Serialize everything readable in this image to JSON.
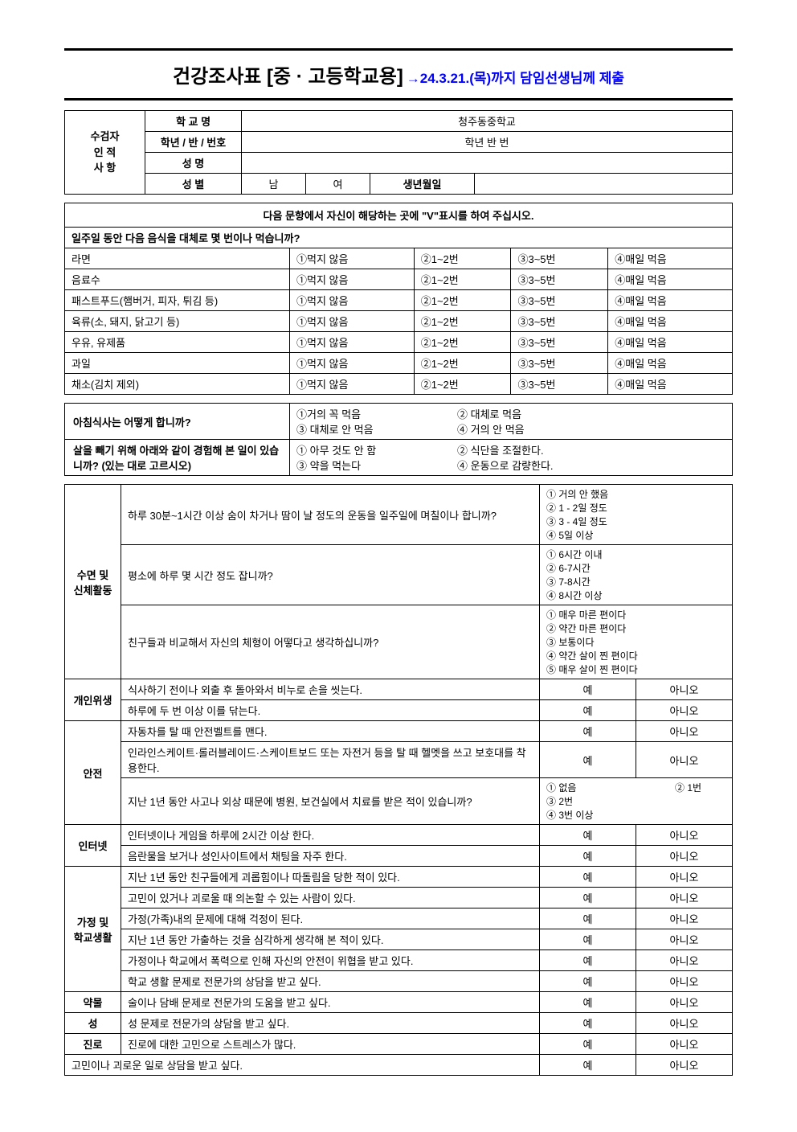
{
  "title": {
    "main": "건강조사표 [중 · 고등학교용]",
    "sub": " →24.3.21.(목)까지 담임선생님께 제출"
  },
  "identity": {
    "rowLabel": "수검자\n인 적\n사 항",
    "schoolLabel": "학 교 명",
    "schoolValue": "청주동중학교",
    "gradeLabel": "학년 / 반 / 번호",
    "gradeValue": "학년      반      번",
    "nameLabel": "성   명",
    "genderLabel": "성   별",
    "genderMale": "남",
    "genderFemale": "여",
    "birthLabel": "생년월일"
  },
  "instruction": "다음  문항에서  자신이  해당하는  곳에  \"V\"표시를  하여  주십시오.",
  "foodSection": {
    "header": "일주일 동안 다음 음식을 대체로 몇 번이나 먹습니까?",
    "options": [
      "①먹지 않음",
      "②1~2번",
      "③3~5번",
      "④매일 먹음"
    ],
    "items": [
      "라면",
      "음료수",
      "패스트푸드(햄버거, 피자, 튀김 등)",
      "육류(소, 돼지, 닭고기 등)",
      "우유, 유제품",
      "과일",
      "채소(김치 제외)"
    ]
  },
  "habits": [
    {
      "q": "아침식사는 어떻게 합니까?",
      "opts": [
        "①거의 꼭 먹음",
        "② 대체로 먹음",
        "③ 대체로 안 먹음",
        "④ 거의 안 먹음"
      ]
    },
    {
      "q": "살을 빼기 위해 아래와 같이 경험해 본 일이 있습니까? (있는 대로 고르시오)",
      "opts": [
        "① 아무 것도 안 함",
        "② 식단을 조절한다.",
        "③ 약을 먹는다",
        "④ 운동으로 감량한다."
      ]
    }
  ],
  "categories": [
    {
      "label": "수면 및\n신체활동",
      "rows": [
        {
          "q": "하루 30분~1시간 이상 숨이 차거나 땀이 날 정도의 운동을 일주일에 며칠이나 합니까?",
          "type": "multi",
          "opts": [
            "① 거의 안 했음",
            "② 1 - 2일 정도",
            "③ 3 - 4일 정도",
            "④ 5일 이상"
          ]
        },
        {
          "q": "평소에 하루 몇 시간 정도 잡니까?",
          "type": "multi",
          "opts": [
            "① 6시간 이내",
            "② 6-7시간",
            "③ 7-8시간",
            "④ 8시간 이상"
          ]
        },
        {
          "q": "친구들과 비교해서 자신의 체형이 어떻다고 생각하십니까?",
          "type": "multi5",
          "opts": [
            "① 매우 마른 편이다",
            "② 약간 마른 편이다",
            "③ 보통이다",
            "④ 약간 살이 찐 편이다",
            "⑤ 매우 살이 찐 편이다"
          ]
        }
      ]
    },
    {
      "label": "개인위생",
      "rows": [
        {
          "q": "식사하기 전이나 외출 후 돌아와서 비누로 손을 씻는다.",
          "type": "yn"
        },
        {
          "q": "하루에 두 번 이상 이를 닦는다.",
          "type": "yn"
        }
      ]
    },
    {
      "label": "안전",
      "rows": [
        {
          "q": "자동차를 탈 때 안전벨트를 맨다.",
          "type": "yn"
        },
        {
          "q": "인라인스케이트·롤러블레이드·스케이트보드 또는 자전거 등을 탈 때 헬멧을 쓰고 보호대를 착용한다.",
          "type": "yn"
        },
        {
          "q": "지난 1년 동안 사고나 외상 때문에 병원, 보건실에서 치료를 받은 적이 있습니까?",
          "type": "multi",
          "opts": [
            "① 없음",
            "② 1번",
            "③ 2번",
            "④ 3번 이상"
          ]
        }
      ]
    },
    {
      "label": "인터넷",
      "rows": [
        {
          "q": "인터넷이나 게임을 하루에 2시간 이상 한다.",
          "type": "yn"
        },
        {
          "q": "음란물을 보거나 성인사이트에서 채팅을 자주 한다.",
          "type": "yn"
        }
      ]
    },
    {
      "label": "가정 및\n학교생활",
      "rows": [
        {
          "q": "지난 1년 동안 친구들에게 괴롭힘이나 따돌림을 당한 적이 있다.",
          "type": "yn"
        },
        {
          "q": "고민이 있거나 괴로울 때 의논할 수 있는 사람이 있다.",
          "type": "yn"
        },
        {
          "q": "가정(가족)내의 문제에 대해 걱정이 된다.",
          "type": "yn"
        },
        {
          "q": "지난 1년 동안 가출하는 것을 심각하게 생각해 본 적이 있다.",
          "type": "yn"
        },
        {
          "q": "가정이나 학교에서 폭력으로 인해 자신의 안전이 위협을 받고 있다.",
          "type": "yn"
        },
        {
          "q": "학교 생활 문제로 전문가의 상담을 받고 싶다.",
          "type": "yn"
        }
      ]
    },
    {
      "label": "약물",
      "rows": [
        {
          "q": "술이나 담배 문제로 전문가의 도움을 받고 싶다.",
          "type": "yn"
        }
      ]
    },
    {
      "label": "성",
      "rows": [
        {
          "q": "성 문제로 전문가의 상담을 받고 싶다.",
          "type": "yn"
        }
      ]
    },
    {
      "label": "진로",
      "rows": [
        {
          "q": "진로에 대한 고민으로 스트레스가 많다.",
          "type": "yn"
        }
      ]
    }
  ],
  "lastRow": {
    "q": "고민이나 괴로운 일로 상담을 받고 싶다.",
    "type": "yn"
  },
  "yn": {
    "yes": "예",
    "no": "아니오"
  }
}
